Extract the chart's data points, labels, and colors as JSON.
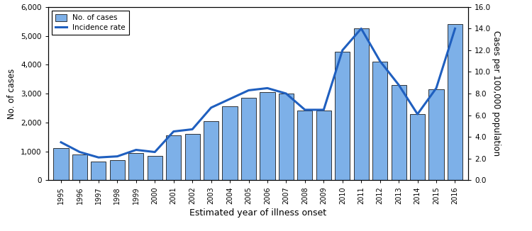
{
  "years": [
    1995,
    1996,
    1997,
    1998,
    1999,
    2000,
    2001,
    2002,
    2003,
    2004,
    2005,
    2006,
    2007,
    2008,
    2009,
    2010,
    2011,
    2012,
    2013,
    2014,
    2015,
    2016
  ],
  "cases": [
    1100,
    900,
    650,
    700,
    950,
    850,
    1550,
    1600,
    2050,
    2550,
    2850,
    3050,
    3000,
    2400,
    2400,
    4450,
    5250,
    4100,
    3300,
    2300,
    3150,
    5400
  ],
  "incidence": [
    3.5,
    2.6,
    2.1,
    2.2,
    2.8,
    2.6,
    4.5,
    4.7,
    6.7,
    7.5,
    8.3,
    8.5,
    8.0,
    6.5,
    6.5,
    12.0,
    14.0,
    11.0,
    8.8,
    6.1,
    8.5,
    14.0
  ],
  "bar_color": "#7db0e8",
  "bar_edgecolor": "#1a1a1a",
  "line_color": "#1f5fbf",
  "ylim_left": [
    0,
    6000
  ],
  "ylim_right": [
    0,
    16.0
  ],
  "yticks_left": [
    0,
    1000,
    2000,
    3000,
    4000,
    5000,
    6000
  ],
  "yticks_right": [
    0.0,
    2.0,
    4.0,
    6.0,
    8.0,
    10.0,
    12.0,
    14.0,
    16.0
  ],
  "ylabel_left": "No. of cases",
  "ylabel_right": "Cases per 100,000 population",
  "xlabel": "Estimated year of illness onset",
  "legend_bar_label": "No. of cases",
  "legend_line_label": "Incidence rate",
  "background_color": "#ffffff",
  "line_width": 2.2,
  "bar_width": 0.8
}
